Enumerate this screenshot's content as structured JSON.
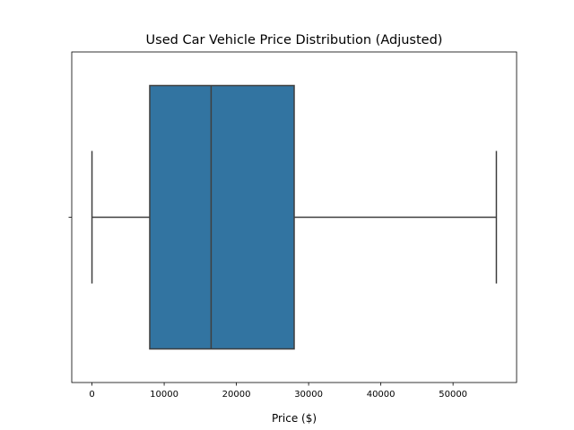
{
  "chart_data": {
    "type": "box",
    "title": "Used Car Vehicle Price Distribution (Adjusted)",
    "xlabel": "Price ($)",
    "ylabel": "",
    "orientation": "horizontal",
    "xlim": [
      -2800,
      58800
    ],
    "x_ticks": [
      0,
      10000,
      20000,
      30000,
      40000,
      50000
    ],
    "x_tick_labels": [
      "0",
      "10000",
      "20000",
      "30000",
      "40000",
      "50000"
    ],
    "grid": false,
    "legend": "none",
    "box": {
      "whisker_low": 0,
      "q1": 8000,
      "median": 16500,
      "q3": 28000,
      "whisker_high": 56000
    },
    "colors": {
      "box_fill": "#3274a1",
      "line": "#3f3f3f",
      "axes": "#000000"
    }
  }
}
